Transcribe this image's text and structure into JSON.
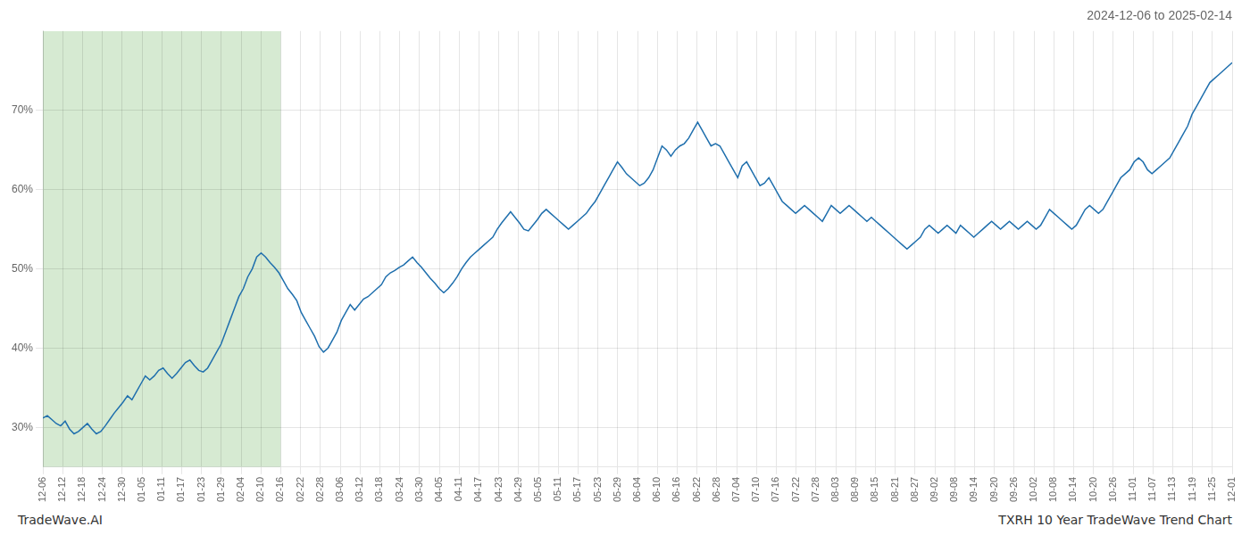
{
  "chart_data": {
    "type": "line",
    "title": "2024-12-06 to 2025-02-14",
    "annotations": [
      "TradeWave.AI",
      "TXRH 10 Year TradeWave Trend Chart"
    ],
    "color": "#1f6fad",
    "grid": true,
    "highlight": {
      "start": 0,
      "end": 12,
      "color": "#d6ead2"
    },
    "xlim": [
      0,
      60
    ],
    "xticks": [
      {
        "value": 0,
        "label": "12-06"
      },
      {
        "value": 1,
        "label": "12-12"
      },
      {
        "value": 2,
        "label": "12-18"
      },
      {
        "value": 3,
        "label": "12-24"
      },
      {
        "value": 4,
        "label": "12-30"
      },
      {
        "value": 5,
        "label": "01-05"
      },
      {
        "value": 6,
        "label": "01-11"
      },
      {
        "value": 7,
        "label": "01-17"
      },
      {
        "value": 8,
        "label": "01-23"
      },
      {
        "value": 9,
        "label": "01-29"
      },
      {
        "value": 10,
        "label": "02-04"
      },
      {
        "value": 11,
        "label": "02-10"
      },
      {
        "value": 12,
        "label": "02-16"
      },
      {
        "value": 13,
        "label": "02-22"
      },
      {
        "value": 14,
        "label": "02-28"
      },
      {
        "value": 15,
        "label": "03-06"
      },
      {
        "value": 16,
        "label": "03-12"
      },
      {
        "value": 17,
        "label": "03-18"
      },
      {
        "value": 18,
        "label": "03-24"
      },
      {
        "value": 19,
        "label": "03-30"
      },
      {
        "value": 20,
        "label": "04-05"
      },
      {
        "value": 21,
        "label": "04-11"
      },
      {
        "value": 22,
        "label": "04-17"
      },
      {
        "value": 23,
        "label": "04-23"
      },
      {
        "value": 24,
        "label": "04-29"
      },
      {
        "value": 25,
        "label": "05-05"
      },
      {
        "value": 26,
        "label": "05-11"
      },
      {
        "value": 27,
        "label": "05-17"
      },
      {
        "value": 28,
        "label": "05-23"
      },
      {
        "value": 29,
        "label": "05-29"
      },
      {
        "value": 30,
        "label": "06-04"
      },
      {
        "value": 31,
        "label": "06-10"
      },
      {
        "value": 32,
        "label": "06-16"
      },
      {
        "value": 33,
        "label": "06-22"
      },
      {
        "value": 34,
        "label": "06-28"
      },
      {
        "value": 35,
        "label": "07-04"
      },
      {
        "value": 36,
        "label": "07-10"
      },
      {
        "value": 37,
        "label": "07-16"
      },
      {
        "value": 38,
        "label": "07-22"
      },
      {
        "value": 39,
        "label": "07-28"
      },
      {
        "value": 40,
        "label": "08-03"
      },
      {
        "value": 41,
        "label": "08-09"
      },
      {
        "value": 42,
        "label": "08-15"
      },
      {
        "value": 43,
        "label": "08-21"
      },
      {
        "value": 44,
        "label": "08-27"
      },
      {
        "value": 45,
        "label": "09-02"
      },
      {
        "value": 46,
        "label": "09-08"
      },
      {
        "value": 47,
        "label": "09-14"
      },
      {
        "value": 48,
        "label": "09-20"
      },
      {
        "value": 49,
        "label": "09-26"
      },
      {
        "value": 50,
        "label": "10-02"
      },
      {
        "value": 51,
        "label": "10-08"
      },
      {
        "value": 52,
        "label": "10-14"
      },
      {
        "value": 53,
        "label": "10-20"
      },
      {
        "value": 54,
        "label": "10-26"
      },
      {
        "value": 55,
        "label": "11-01"
      },
      {
        "value": 56,
        "label": "11-07"
      },
      {
        "value": 57,
        "label": "11-13"
      },
      {
        "value": 58,
        "label": "11-19"
      },
      {
        "value": 59,
        "label": "11-25"
      },
      {
        "value": 60,
        "label": "12-01"
      }
    ],
    "ylim": [
      25,
      80
    ],
    "yticks": [
      {
        "value": 30,
        "label": "30%"
      },
      {
        "value": 40,
        "label": "40%"
      },
      {
        "value": 50,
        "label": "50%"
      },
      {
        "value": 60,
        "label": "60%"
      },
      {
        "value": 70,
        "label": "70%"
      }
    ],
    "x": [
      0,
      0.225,
      0.449,
      0.674,
      0.899,
      1.124,
      1.348,
      1.573,
      1.798,
      2.022,
      2.247,
      2.472,
      2.697,
      2.921,
      3.146,
      3.371,
      3.596,
      3.82,
      4.045,
      4.27,
      4.494,
      4.719,
      4.944,
      5.169,
      5.393,
      5.618,
      5.843,
      6.067,
      6.292,
      6.517,
      6.742,
      6.966,
      7.191,
      7.416,
      7.64,
      7.865,
      8.09,
      8.315,
      8.539,
      8.764,
      8.989,
      9.213,
      9.438,
      9.663,
      9.888,
      10.112,
      10.337,
      10.562,
      10.787,
      11.011,
      11.236,
      11.461,
      11.685,
      11.91,
      12.135,
      12.36,
      12.584,
      12.809,
      13.034,
      13.258,
      13.483,
      13.708,
      13.933,
      14.157,
      14.382,
      14.607,
      14.831,
      15.056,
      15.281,
      15.506,
      15.73,
      15.955,
      16.18,
      16.404,
      16.629,
      16.854,
      17.079,
      17.303,
      17.528,
      17.753,
      17.978,
      18.202,
      18.427,
      18.652,
      18.876,
      19.101,
      19.326,
      19.551,
      19.775,
      20,
      20.225,
      20.449,
      20.674,
      20.899,
      21.124,
      21.348,
      21.573,
      21.798,
      22.022,
      22.247,
      22.472,
      22.697,
      22.921,
      23.146,
      23.371,
      23.596,
      23.82,
      24.045,
      24.27,
      24.494,
      24.719,
      24.944,
      25.169,
      25.393,
      25.618,
      25.843,
      26.067,
      26.292,
      26.517,
      26.742,
      26.966,
      27.191,
      27.416,
      27.64,
      27.865,
      28.09,
      28.315,
      28.539,
      28.764,
      28.989,
      29.213,
      29.438,
      29.663,
      29.888,
      30.112,
      30.337,
      30.562,
      30.787,
      31.011,
      31.236,
      31.461,
      31.685,
      31.91,
      32.135,
      32.36,
      32.584,
      32.809,
      33.034,
      33.258,
      33.483,
      33.708,
      33.933,
      34.157,
      34.382,
      34.607,
      34.831,
      35.056,
      35.281,
      35.506,
      35.73,
      35.955,
      36.18,
      36.404,
      36.629,
      36.854,
      37.079,
      37.303,
      37.528,
      37.753,
      37.978,
      38.202,
      38.427,
      38.652,
      38.876,
      39.101,
      39.326,
      39.551,
      39.775,
      40,
      40.225,
      40.449,
      40.674,
      40.899,
      41.124,
      41.348,
      41.573,
      41.798,
      42.022,
      42.247,
      42.472,
      42.697,
      42.921,
      43.146,
      43.371,
      43.596,
      43.82,
      44.045,
      44.27,
      44.494,
      44.719,
      44.944,
      45.169,
      45.393,
      45.618,
      45.843,
      46.067,
      46.292,
      46.517,
      46.742,
      46.966,
      47.191,
      47.416,
      47.64,
      47.865,
      48.09,
      48.315,
      48.539,
      48.764,
      48.989,
      49.213,
      49.438,
      49.663,
      49.888,
      50.112,
      50.337,
      50.562,
      50.787,
      51.011,
      51.236,
      51.461,
      51.685,
      51.91,
      52.135,
      52.36,
      52.584,
      52.809,
      53.034,
      53.258,
      53.483,
      53.708,
      53.933,
      54.157,
      54.382,
      54.607,
      54.831,
      55.056,
      55.281,
      55.506,
      55.73,
      55.955,
      56.18,
      56.404,
      56.629,
      56.854,
      57.079,
      57.303,
      57.528,
      57.753,
      57.978,
      58.202,
      58.427,
      58.652,
      58.876,
      59.101,
      59.326,
      59.551,
      59.775,
      60
    ],
    "values": [
      31.2,
      31.5,
      31.0,
      30.5,
      30.2,
      30.8,
      29.8,
      29.2,
      29.5,
      30.0,
      30.5,
      29.8,
      29.2,
      29.5,
      30.2,
      31.0,
      31.8,
      32.5,
      33.2,
      34.0,
      33.5,
      34.5,
      35.5,
      36.5,
      36.0,
      36.5,
      37.2,
      37.5,
      36.8,
      36.2,
      36.8,
      37.5,
      38.2,
      38.5,
      37.8,
      37.2,
      37.0,
      37.5,
      38.5,
      39.5,
      40.5,
      42.0,
      43.5,
      45.0,
      46.5,
      47.5,
      49.0,
      50.0,
      51.5,
      52.0,
      51.5,
      50.8,
      50.2,
      49.5,
      48.5,
      47.5,
      46.8,
      46.0,
      44.5,
      43.5,
      42.5,
      41.5,
      40.2,
      39.5,
      40.0,
      41.0,
      42.0,
      43.5,
      44.5,
      45.5,
      44.8,
      45.5,
      46.2,
      46.5,
      47.0,
      47.5,
      48.0,
      49.0,
      49.5,
      49.8,
      50.2,
      50.5,
      51.0,
      51.5,
      50.8,
      50.2,
      49.5,
      48.8,
      48.2,
      47.5,
      47.0,
      47.5,
      48.2,
      49.0,
      50.0,
      50.8,
      51.5,
      52.0,
      52.5,
      53.0,
      53.5,
      54.0,
      55.0,
      55.8,
      56.5,
      57.2,
      56.5,
      55.8,
      55.0,
      54.8,
      55.5,
      56.2,
      57.0,
      57.5,
      57.0,
      56.5,
      56.0,
      55.5,
      55.0,
      55.5,
      56.0,
      56.5,
      57.0,
      57.8,
      58.5,
      59.5,
      60.5,
      61.5,
      62.5,
      63.5,
      62.8,
      62.0,
      61.5,
      61.0,
      60.5,
      60.8,
      61.5,
      62.5,
      64.0,
      65.5,
      65.0,
      64.2,
      65.0,
      65.5,
      65.8,
      66.5,
      67.5,
      68.5,
      67.5,
      66.5,
      65.5,
      65.8,
      65.5,
      64.5,
      63.5,
      62.5,
      61.5,
      63.0,
      63.5,
      62.5,
      61.5,
      60.5,
      60.8,
      61.5,
      60.5,
      59.5,
      58.5,
      58.0,
      57.5,
      57.0,
      57.5,
      58.0,
      57.5,
      57.0,
      56.5,
      56.0,
      57.0,
      58.0,
      57.5,
      57.0,
      57.5,
      58.0,
      57.5,
      57.0,
      56.5,
      56.0,
      56.5,
      56.0,
      55.5,
      55.0,
      54.5,
      54.0,
      53.5,
      53.0,
      52.5,
      53.0,
      53.5,
      54.0,
      55.0,
      55.5,
      55.0,
      54.5,
      55.0,
      55.5,
      55.0,
      54.5,
      55.5,
      55.0,
      54.5,
      54.0,
      54.5,
      55.0,
      55.5,
      56.0,
      55.5,
      55.0,
      55.5,
      56.0,
      55.5,
      55.0,
      55.5,
      56.0,
      55.5,
      55.0,
      55.5,
      56.5,
      57.5,
      57.0,
      56.5,
      56.0,
      55.5,
      55.0,
      55.5,
      56.5,
      57.5,
      58.0,
      57.5,
      57.0,
      57.5,
      58.5,
      59.5,
      60.5,
      61.5,
      62.0,
      62.5,
      63.5,
      64.0,
      63.5,
      62.5,
      62.0,
      62.5,
      63.0,
      63.5,
      64.0,
      65.0,
      66.0,
      67.0,
      68.0,
      69.5,
      70.5,
      71.5,
      72.5,
      73.5,
      74.0,
      74.5,
      75.0,
      75.5,
      76.0
    ]
  }
}
